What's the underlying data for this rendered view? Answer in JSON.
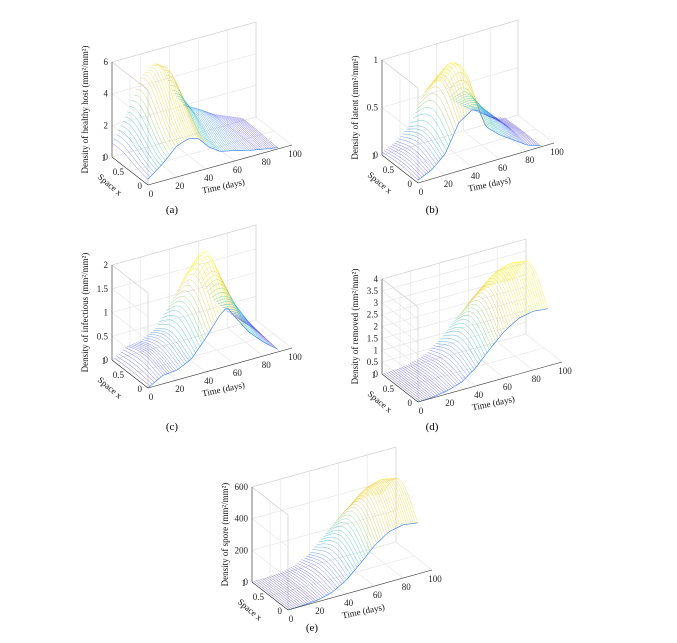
{
  "colormap": [
    "#3e26a8",
    "#4743f6",
    "#2d7cf1",
    "#1aa8d5",
    "#25c1a5",
    "#8ac64f",
    "#e3ba2f",
    "#f6d724",
    "#f9fb14"
  ],
  "chart_data": [
    {
      "id": "a",
      "type": "surface3d",
      "caption": "(a)",
      "zlabel": "Density of healthy host (mm²/mm²)",
      "xlabel": "Time (days)",
      "ylabel": "Space x",
      "xlim": [
        0,
        100
      ],
      "ylim": [
        0,
        1
      ],
      "zlim": [
        0,
        6
      ],
      "xticks": [
        0,
        20,
        40,
        60,
        80,
        100
      ],
      "yticks": [
        0,
        0.5,
        1
      ],
      "zticks": [
        0,
        2,
        4,
        6
      ],
      "profile_t": [
        0,
        10,
        20,
        28,
        35,
        42,
        50,
        60,
        70,
        80,
        90
      ],
      "profile_z": [
        0.9,
        2.6,
        4.8,
        5.4,
        5.0,
        3.3,
        2.1,
        1.6,
        1.0,
        0.6,
        0.2
      ],
      "x_peak": 0.85
    },
    {
      "id": "b",
      "type": "surface3d",
      "caption": "(b)",
      "zlabel": "Density of latent (mm²/mm²)",
      "xlabel": "Time (days)",
      "ylabel": "Space x",
      "xlim": [
        0,
        100
      ],
      "ylim": [
        0,
        1
      ],
      "zlim": [
        0,
        1
      ],
      "xticks": [
        0,
        20,
        40,
        60,
        80,
        100
      ],
      "yticks": [
        0,
        0.5,
        1
      ],
      "zticks": [
        0,
        0.5,
        1
      ],
      "profile_t": [
        0,
        10,
        20,
        30,
        40,
        45,
        50,
        60,
        70,
        80,
        90
      ],
      "profile_z": [
        0.05,
        0.15,
        0.35,
        0.8,
        0.95,
        0.9,
        0.6,
        0.4,
        0.25,
        0.1,
        0.02
      ],
      "x_peak": 0.5
    },
    {
      "id": "c",
      "type": "surface3d",
      "caption": "(c)",
      "zlabel": "Density of infectious (mm²/mm²)",
      "xlabel": "Time (days)",
      "ylabel": "Space x",
      "xlim": [
        0,
        100
      ],
      "ylim": [
        0,
        1
      ],
      "zlim": [
        0,
        2
      ],
      "xticks": [
        0,
        20,
        40,
        60,
        80,
        100
      ],
      "yticks": [
        0,
        0.5,
        1
      ],
      "zticks": [
        0,
        0.5,
        1,
        1.5,
        2
      ],
      "profile_t": [
        0,
        10,
        20,
        30,
        40,
        50,
        55,
        60,
        70,
        80,
        90
      ],
      "profile_z": [
        0.0,
        0.3,
        0.35,
        0.6,
        1.2,
        1.9,
        2.1,
        1.7,
        1.0,
        0.5,
        0.1
      ],
      "x_peak": 0.55
    },
    {
      "id": "d",
      "type": "surface3d",
      "caption": "(d)",
      "zlabel": "Density of removed (mm²/mm²)",
      "xlabel": "Time (days)",
      "ylabel": "Space x",
      "xlim": [
        0,
        100
      ],
      "ylim": [
        0,
        1
      ],
      "zlim": [
        0,
        4
      ],
      "xticks": [
        0,
        20,
        40,
        60,
        80,
        100
      ],
      "yticks": [
        0,
        0.5,
        1
      ],
      "zticks": [
        0,
        0.5,
        1,
        1.5,
        2,
        2.5,
        3,
        3.5,
        4
      ],
      "profile_t": [
        0,
        10,
        20,
        30,
        40,
        50,
        60,
        70,
        80,
        90
      ],
      "profile_z": [
        0.0,
        0.05,
        0.2,
        0.5,
        1.2,
        2.2,
        3.1,
        3.7,
        3.9,
        3.8
      ],
      "x_peak": 0.5
    },
    {
      "id": "e",
      "type": "surface3d",
      "caption": "(e)",
      "zlabel": "Density of spore (mm²/mm²)",
      "xlabel": "Time (days)",
      "ylabel": "Space x",
      "xlim": [
        0,
        100
      ],
      "ylim": [
        0,
        1
      ],
      "zlim": [
        0,
        600
      ],
      "xticks": [
        0,
        20,
        40,
        60,
        80,
        100
      ],
      "yticks": [
        0,
        0.5,
        1
      ],
      "zticks": [
        0,
        200,
        400,
        600
      ],
      "profile_t": [
        0,
        10,
        20,
        30,
        40,
        50,
        60,
        70,
        80,
        90
      ],
      "profile_z": [
        0,
        5,
        15,
        50,
        130,
        260,
        400,
        500,
        530,
        510
      ],
      "x_peak": 0.5
    }
  ]
}
